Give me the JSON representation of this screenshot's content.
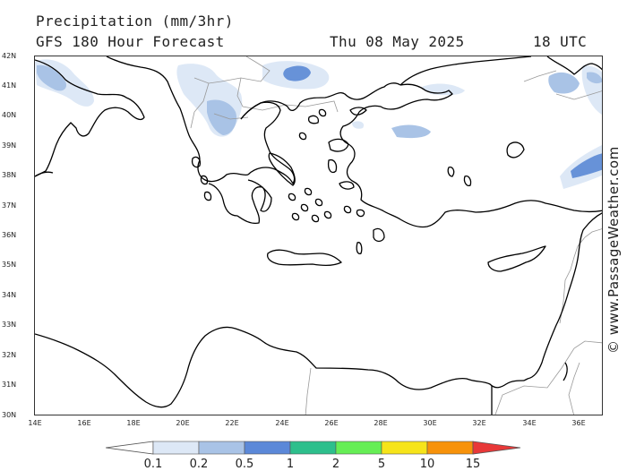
{
  "header": {
    "title": "Precipitation (mm/3hr)",
    "subtitle": "GFS 180 Hour Forecast",
    "date": "Thu 08 May 2025",
    "time": "18 UTC"
  },
  "map": {
    "latitude_labels": [
      "42N",
      "41N",
      "40N",
      "39N",
      "38N",
      "37N",
      "36N",
      "35N",
      "34N",
      "33N",
      "32N",
      "31N",
      "30N"
    ],
    "longitude_labels": [
      "14E",
      "16E",
      "18E",
      "20E",
      "22E",
      "24E",
      "26E",
      "28E",
      "30E",
      "32E",
      "34E",
      "36E"
    ],
    "coast_color": "#000000",
    "border_color": "#999999",
    "precip_colors": [
      "#dde8f6",
      "#a9c3e6",
      "#6792d8",
      "#3ab3ff"
    ]
  },
  "watermark": "© www.PassageWeather.com",
  "legend": {
    "labels": [
      "0.1",
      "0.2",
      "0.5",
      "1",
      "2",
      "5",
      "10",
      "15"
    ],
    "colors": [
      "#ffffff",
      "#dde8f6",
      "#a9c3e6",
      "#5b88d8",
      "#2dbf8c",
      "#66ee55",
      "#f6e41a",
      "#f7920a",
      "#e83838"
    ]
  }
}
